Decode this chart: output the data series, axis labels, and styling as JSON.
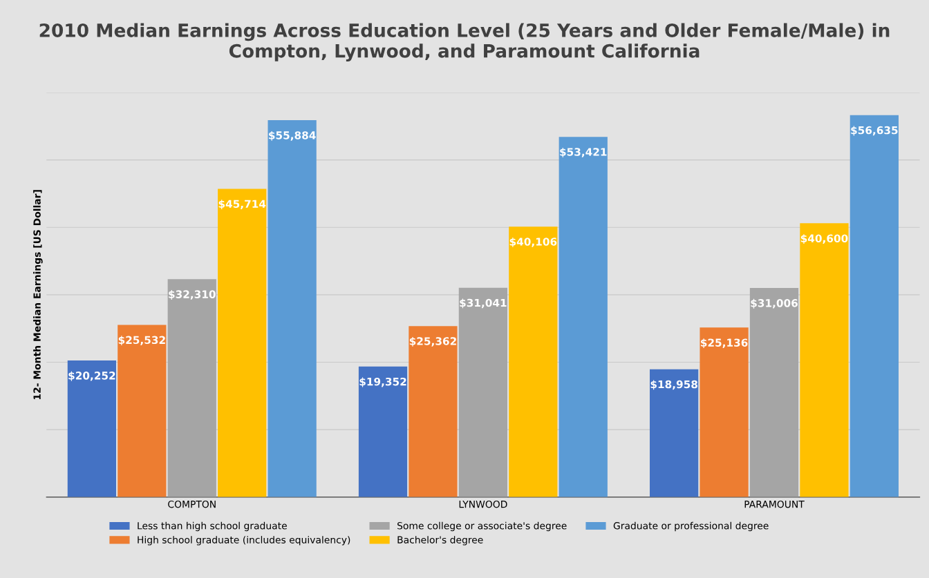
{
  "chart_data": {
    "type": "bar",
    "title": "2010 Median Earnings Across Education Level (25 Years and Older Female/Male) in Compton, Lynwood, and Paramount California",
    "ylabel": "12- Month Median Earnings [US Dollar]",
    "categories": [
      "COMPTON",
      "LYNWOOD",
      "PARAMOUNT"
    ],
    "series": [
      {
        "name": "Less than high school graduate",
        "color": "#4472c4",
        "values": [
          20252,
          19352,
          18958
        ],
        "value_labels": [
          "$20,252",
          "$19,352",
          "$18,958"
        ]
      },
      {
        "name": "High school graduate (includes equivalency)",
        "color": "#ed7d31",
        "values": [
          25532,
          25362,
          25136
        ],
        "value_labels": [
          "$25,532",
          "$25,362",
          "$25,136"
        ]
      },
      {
        "name": "Some college or associate's degree",
        "color": "#a5a5a5",
        "values": [
          32310,
          31041,
          31006
        ],
        "value_labels": [
          "$32,310",
          "$31,041",
          "$31,006"
        ]
      },
      {
        "name": "Bachelor's degree",
        "color": "#ffc000",
        "values": [
          45714,
          40106,
          40600
        ],
        "value_labels": [
          "$45,714",
          "$40,106",
          "$40,600"
        ]
      },
      {
        "name": "Graduate or professional degree",
        "color": "#5b9bd5",
        "values": [
          55884,
          53421,
          56635
        ],
        "value_labels": [
          "$55,884",
          "$53,421",
          "$56,635"
        ]
      }
    ],
    "ylim": [
      0,
      60000
    ],
    "yticks": [
      {
        "value": 0,
        "label": null
      },
      {
        "value": 10000,
        "label": null
      },
      {
        "value": 20000,
        "label": null
      },
      {
        "value": 30000,
        "label": null
      },
      {
        "value": 40000,
        "label": null
      },
      {
        "value": 50000,
        "label": null
      },
      {
        "value": 60000,
        "label": null
      }
    ],
    "tick_labels": "x",
    "grid": "y",
    "legend": "bottom"
  }
}
